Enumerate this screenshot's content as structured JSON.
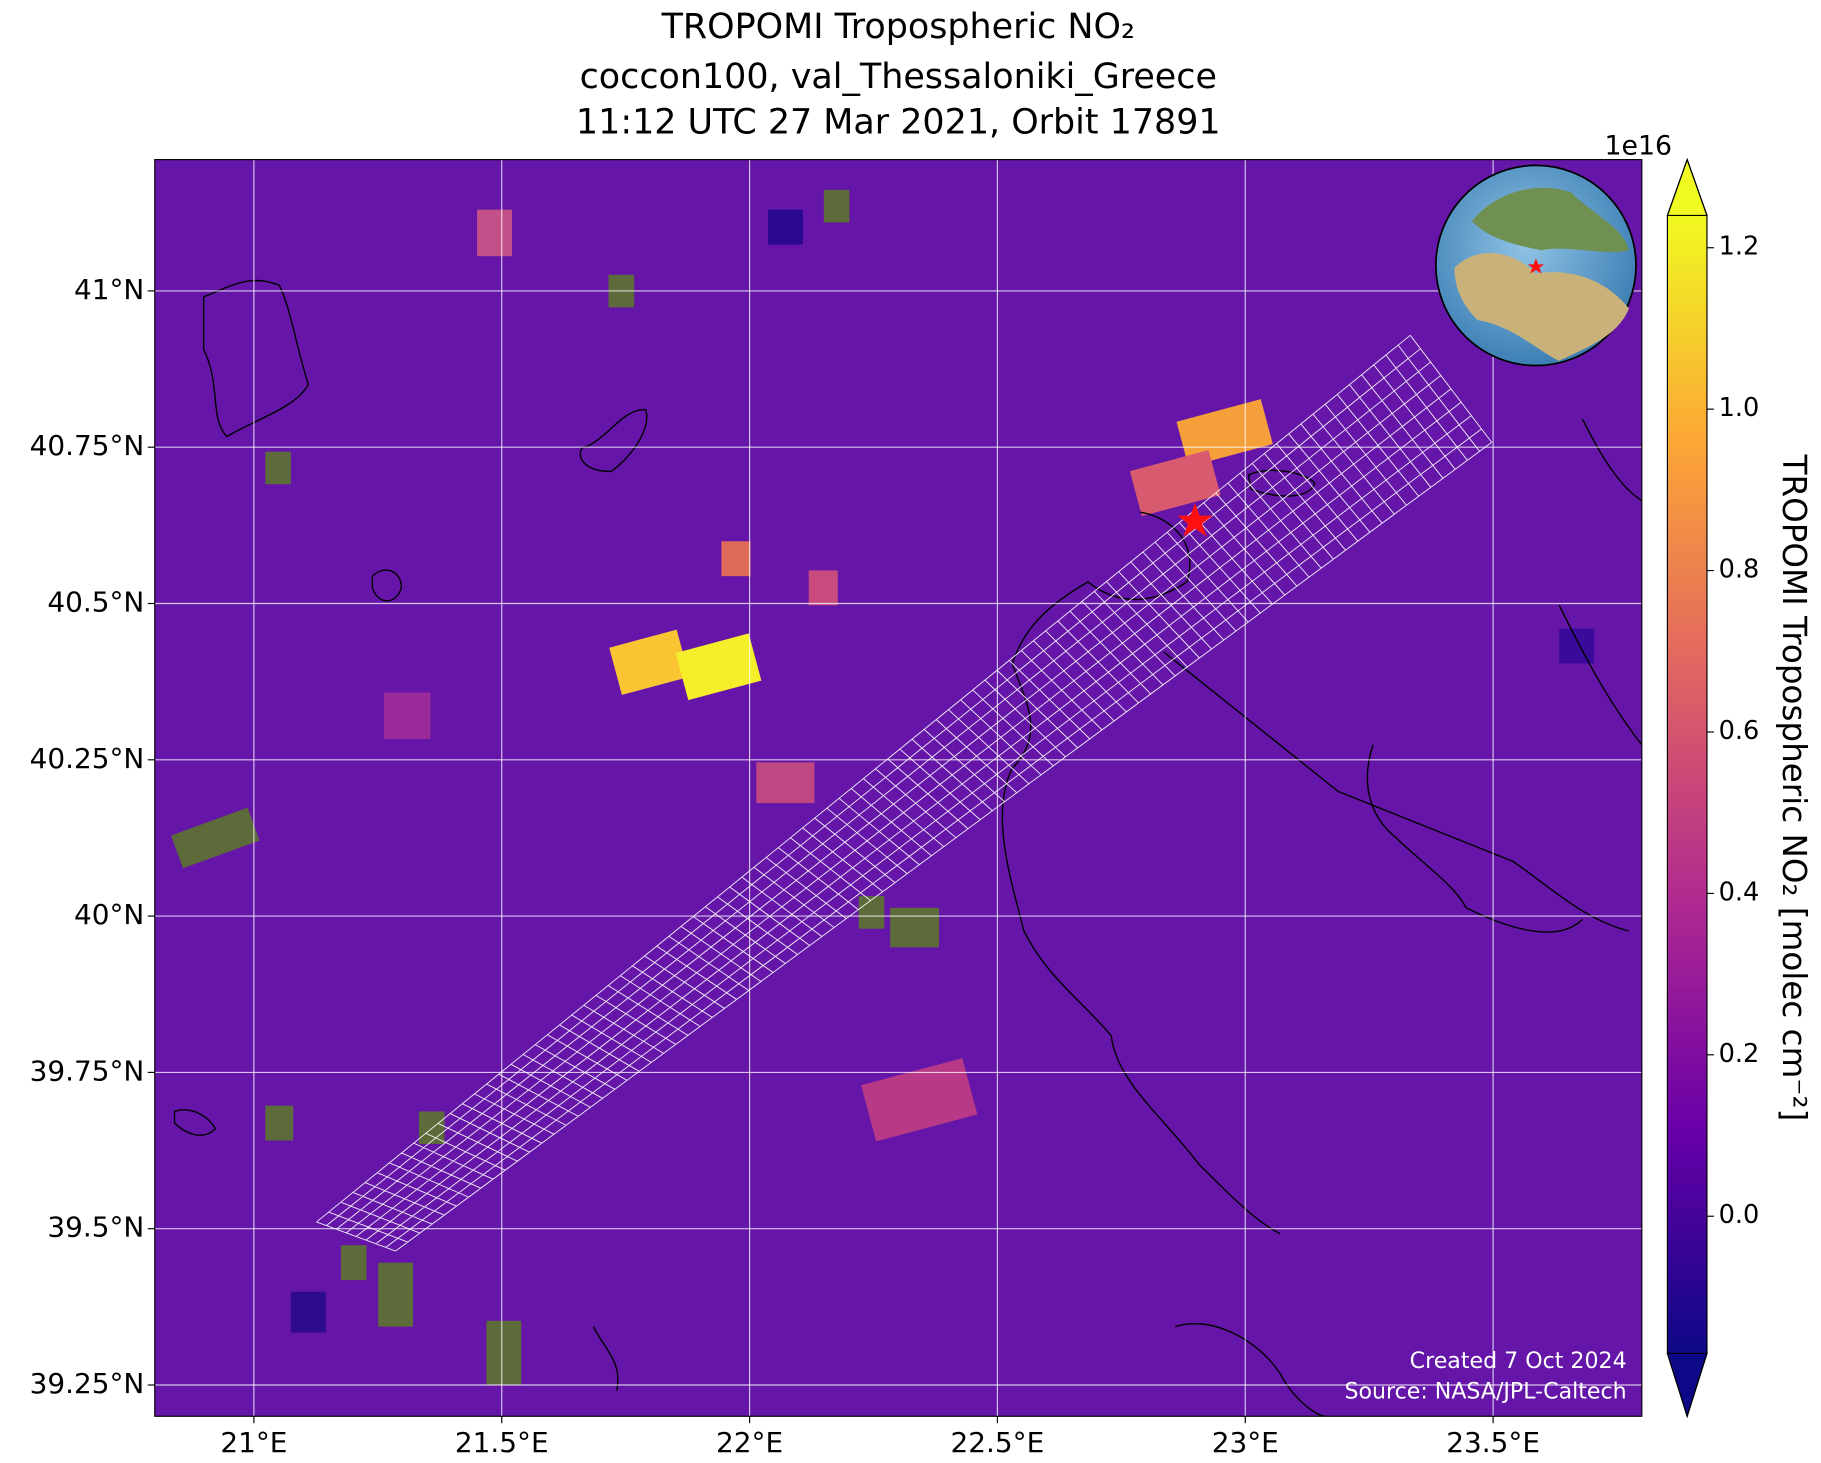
{
  "chart_data": {
    "type": "map",
    "title": [
      "TROPOMI Tropospheric NO₂",
      "coccon100, val_Thessaloniki_Greece",
      "11:12 UTC 27 Mar 2021, Orbit 17891"
    ],
    "xlim": [
      20.8,
      23.8
    ],
    "ylim": [
      39.2,
      41.21
    ],
    "xticks": [
      {
        "value": 21,
        "label": "21°E"
      },
      {
        "value": 21.5,
        "label": "21.5°E"
      },
      {
        "value": 22,
        "label": "22°E"
      },
      {
        "value": 22.5,
        "label": "22.5°E"
      },
      {
        "value": 23,
        "label": "23°E"
      },
      {
        "value": 23.5,
        "label": "23.5°E"
      }
    ],
    "yticks": [
      {
        "value": 39.25,
        "label": "39.25°N"
      },
      {
        "value": 39.5,
        "label": "39.5°N"
      },
      {
        "value": 39.75,
        "label": "39.75°N"
      },
      {
        "value": 40,
        "label": "40°N"
      },
      {
        "value": 40.25,
        "label": "40.25°N"
      },
      {
        "value": 40.5,
        "label": "40.5°N"
      },
      {
        "value": 40.75,
        "label": "40.75°N"
      },
      {
        "value": 41,
        "label": "41°N"
      }
    ],
    "grid": true,
    "colorbar": {
      "label": "TROPOMI Tropospheric NO₂ [molec cm⁻²]",
      "offset_text": "1e16",
      "lim": [
        -0.17,
        1.24
      ],
      "ticks": [
        {
          "value": 0,
          "label": "0.0"
        },
        0.2,
        0.4,
        0.6,
        0.8,
        {
          "value": 1,
          "label": "1.0"
        },
        1.2
      ],
      "colors": [
        "#0d0887",
        "#6a00a8",
        "#b12a90",
        "#e16462",
        "#fca636",
        "#f0f921"
      ]
    },
    "annotations": [
      "Created 7 Oct 2024",
      "Source: NASA/JPL-Caltech"
    ]
  }
}
